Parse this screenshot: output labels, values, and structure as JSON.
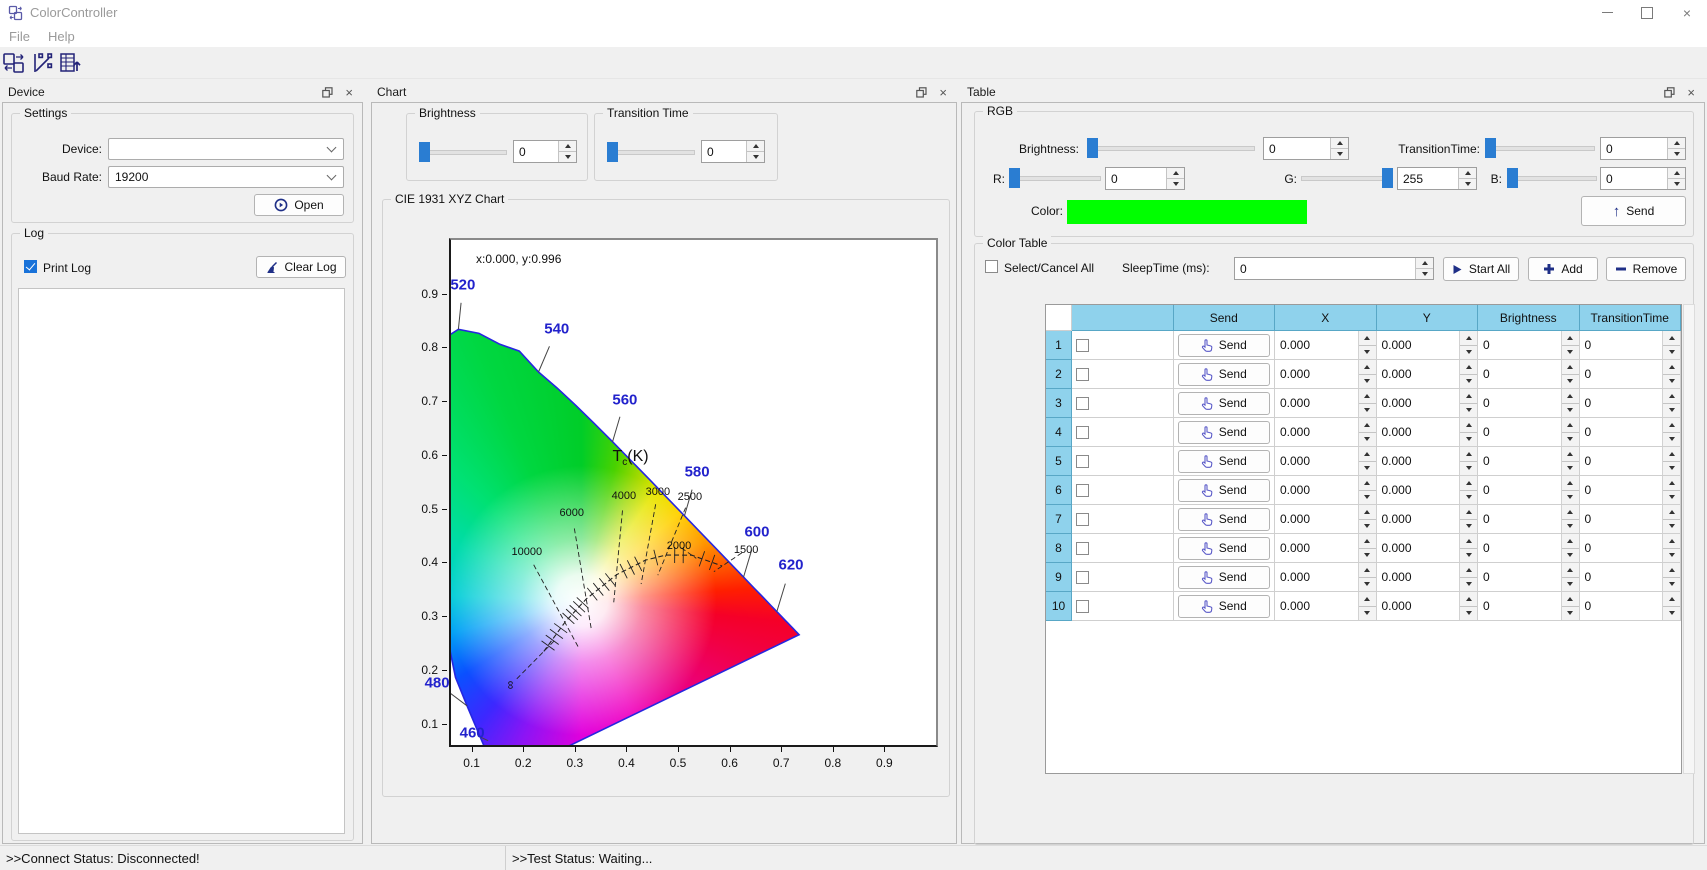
{
  "window": {
    "title": "ColorController"
  },
  "menu": {
    "items": [
      {
        "label": "File"
      },
      {
        "label": "Help"
      }
    ]
  },
  "toolbar": {
    "icons": [
      "device-transfer-icon",
      "chart-icon",
      "table-upload-icon"
    ]
  },
  "colors": {
    "accent_blue": "#2a7dd2",
    "table_header_blue": "#8fd2ec",
    "swatch_green": "#00ff00",
    "icon_navy": "#1f2f87",
    "wavelength_label_blue": "#2222cc",
    "checkbox_checked_blue": "#1872d9"
  },
  "device_panel": {
    "title": "Device",
    "settings": {
      "group_label": "Settings",
      "device_label": "Device:",
      "device_value": "",
      "baud_label": "Baud Rate:",
      "baud_value": "19200",
      "open_label": "Open"
    },
    "log": {
      "group_label": "Log",
      "print_log_label": "Print Log",
      "print_log_checked": true,
      "clear_label": "Clear Log",
      "content": ""
    }
  },
  "chart_panel": {
    "title": "Chart",
    "brightness": {
      "group_label": "Brightness",
      "value": "0"
    },
    "transition": {
      "group_label": "Transition Time",
      "value": "0"
    }
  },
  "chart_data": {
    "type": "area",
    "title": "CIE 1931 XYZ Chart",
    "annotation": "x:0.000, y:0.996",
    "xlim": [
      0.06,
      1.0
    ],
    "ylim": [
      0.06,
      1.0
    ],
    "x_ticks": [
      "0.1",
      "0.2",
      "0.3",
      "0.4",
      "0.5",
      "0.6",
      "0.7",
      "0.8",
      "0.9"
    ],
    "y_ticks": [
      "0.1",
      "0.2",
      "0.3",
      "0.4",
      "0.5",
      "0.6",
      "0.7",
      "0.8",
      "0.9"
    ],
    "cct_title_T": "T",
    "cct_title_sub": "c",
    "cct_title_rest": "(K)",
    "cct_title_pos": [
      0.408,
      0.595
    ],
    "white_point": [
      0.3127,
      0.329
    ],
    "spectral_locus": [
      [
        0.1741,
        0.005
      ],
      [
        0.144,
        0.0297
      ],
      [
        0.1241,
        0.0578
      ],
      [
        0.0913,
        0.1327
      ],
      [
        0.0687,
        0.1858
      ],
      [
        0.0454,
        0.295
      ],
      [
        0.0082,
        0.5384
      ],
      [
        0.0139,
        0.7502
      ],
      [
        0.0389,
        0.812
      ],
      [
        0.0743,
        0.8338
      ],
      [
        0.1142,
        0.8262
      ],
      [
        0.1547,
        0.8059
      ],
      [
        0.1923,
        0.7932
      ],
      [
        0.2296,
        0.7543
      ],
      [
        0.2658,
        0.7243
      ],
      [
        0.3016,
        0.6923
      ],
      [
        0.3373,
        0.6588
      ],
      [
        0.3731,
        0.6245
      ],
      [
        0.4087,
        0.5896
      ],
      [
        0.4441,
        0.5547
      ],
      [
        0.4788,
        0.5202
      ],
      [
        0.5125,
        0.4866
      ],
      [
        0.5448,
        0.4544
      ],
      [
        0.5752,
        0.4242
      ],
      [
        0.6029,
        0.3965
      ],
      [
        0.627,
        0.3725
      ],
      [
        0.6482,
        0.3514
      ],
      [
        0.6658,
        0.334
      ],
      [
        0.6801,
        0.3197
      ],
      [
        0.6915,
        0.3083
      ],
      [
        0.7006,
        0.2993
      ],
      [
        0.7079,
        0.292
      ],
      [
        0.714,
        0.2859
      ],
      [
        0.719,
        0.2809
      ],
      [
        0.723,
        0.277
      ],
      [
        0.726,
        0.274
      ],
      [
        0.7283,
        0.2717
      ],
      [
        0.73,
        0.27
      ],
      [
        0.7347,
        0.2653
      ]
    ],
    "wavelength_labels": [
      {
        "text": "520",
        "label": [
          0.083,
          0.916
        ],
        "anchor": [
          0.0743,
          0.8338
        ]
      },
      {
        "text": "540",
        "label": [
          0.265,
          0.834
        ],
        "anchor": [
          0.2296,
          0.7543
        ]
      },
      {
        "text": "560",
        "label": [
          0.397,
          0.702
        ],
        "anchor": [
          0.3731,
          0.6245
        ]
      },
      {
        "text": "580",
        "label": [
          0.537,
          0.568
        ],
        "anchor": [
          0.5125,
          0.4866
        ]
      },
      {
        "text": "600",
        "label": [
          0.653,
          0.456
        ],
        "anchor": [
          0.627,
          0.3725
        ]
      },
      {
        "text": "620",
        "label": [
          0.719,
          0.395
        ],
        "anchor": [
          0.6915,
          0.3083
        ]
      },
      {
        "text": "480",
        "label": [
          0.033,
          0.175
        ],
        "anchor": [
          0.0913,
          0.1327
        ]
      },
      {
        "text": "460",
        "label": [
          0.101,
          0.082
        ],
        "anchor": [
          0.132,
          0.068
        ]
      }
    ],
    "planckian_locus": [
      {
        "label": "∞",
        "x": 0.2399,
        "y": 0.2342,
        "label_pos": [
          0.176,
          0.172
        ]
      },
      {
        "label": "10000",
        "x": 0.2807,
        "y": 0.2884,
        "label_pos": [
          0.207,
          0.419
        ]
      },
      {
        "label": "6000",
        "x": 0.3221,
        "y": 0.3318,
        "label_pos": [
          0.294,
          0.492
        ]
      },
      {
        "label": "4000",
        "x": 0.3805,
        "y": 0.3768,
        "label_pos": [
          0.395,
          0.523
        ]
      },
      {
        "label": "3000",
        "x": 0.4369,
        "y": 0.4041,
        "label_pos": [
          0.461,
          0.531
        ]
      },
      {
        "label": "2500",
        "x": 0.477,
        "y": 0.4137,
        "label_pos": [
          0.523,
          0.521
        ]
      },
      {
        "label": "2000",
        "x": 0.5267,
        "y": 0.4133,
        "label_pos": [
          0.502,
          0.43
        ]
      },
      {
        "label": "1500",
        "x": 0.5857,
        "y": 0.3931,
        "label_pos": [
          0.632,
          0.423
        ]
      }
    ],
    "isotherm_tick_counts": [
      4,
      5,
      4,
      3,
      1,
      2,
      2
    ]
  },
  "table_panel": {
    "title": "Table",
    "rgb": {
      "group_label": "RGB",
      "brightness_label": "Brightness:",
      "brightness_value": "0",
      "transition_label": "TransitionTime:",
      "transition_value": "0",
      "r_label": "R:",
      "r_value": "0",
      "g_label": "G:",
      "g_value": "255",
      "b_label": "B:",
      "b_value": "0",
      "color_label": "Color:",
      "send_label": "Send"
    },
    "color_table": {
      "group_label": "Color Table",
      "select_all_label": "Select/Cancel All",
      "select_all_checked": false,
      "sleep_label": "SleepTime (ms):",
      "sleep_value": "0",
      "start_all_label": "Start All",
      "add_label": "Add",
      "remove_label": "Remove",
      "columns": [
        "",
        "",
        "Send",
        "X",
        "Y",
        "Brightness",
        "TransitionTime"
      ],
      "send_button_label": "Send",
      "rows": [
        {
          "num": "1",
          "checked": false,
          "x": "0.000",
          "y": "0.000",
          "brightness": "0",
          "transition": "0"
        },
        {
          "num": "2",
          "checked": false,
          "x": "0.000",
          "y": "0.000",
          "brightness": "0",
          "transition": "0"
        },
        {
          "num": "3",
          "checked": false,
          "x": "0.000",
          "y": "0.000",
          "brightness": "0",
          "transition": "0"
        },
        {
          "num": "4",
          "checked": false,
          "x": "0.000",
          "y": "0.000",
          "brightness": "0",
          "transition": "0"
        },
        {
          "num": "5",
          "checked": false,
          "x": "0.000",
          "y": "0.000",
          "brightness": "0",
          "transition": "0"
        },
        {
          "num": "6",
          "checked": false,
          "x": "0.000",
          "y": "0.000",
          "brightness": "0",
          "transition": "0"
        },
        {
          "num": "7",
          "checked": false,
          "x": "0.000",
          "y": "0.000",
          "brightness": "0",
          "transition": "0"
        },
        {
          "num": "8",
          "checked": false,
          "x": "0.000",
          "y": "0.000",
          "brightness": "0",
          "transition": "0"
        },
        {
          "num": "9",
          "checked": false,
          "x": "0.000",
          "y": "0.000",
          "brightness": "0",
          "transition": "0"
        },
        {
          "num": "10",
          "checked": false,
          "x": "0.000",
          "y": "0.000",
          "brightness": "0",
          "transition": "0"
        }
      ]
    }
  },
  "status_bar": {
    "connect": ">>Connect Status: Disconnected!",
    "test": ">>Test Status: Waiting..."
  }
}
